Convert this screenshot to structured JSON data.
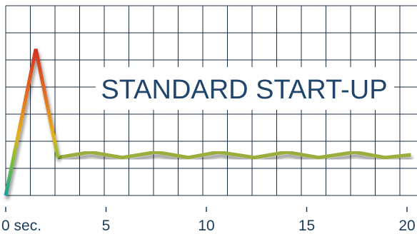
{
  "chart_data": {
    "type": "line",
    "title": "STANDARD START-UP",
    "xlabel": "",
    "ylabel": "",
    "x_ticks": [
      {
        "value": 0,
        "label": "0 sec."
      },
      {
        "value": 5,
        "label": "5"
      },
      {
        "value": 10,
        "label": "10"
      },
      {
        "value": 15,
        "label": "15"
      },
      {
        "value": 20,
        "label": "20"
      }
    ],
    "xlim": [
      0,
      20.2
    ],
    "ylim": [
      0,
      7
    ],
    "grid": true,
    "series": [
      {
        "x": [
          0,
          1.5,
          2.6,
          4.2,
          5.8,
          7.5,
          9.1,
          10.6,
          12.4,
          14.0,
          15.6,
          17.4,
          18.9,
          20.2
        ],
        "y": [
          0,
          5.4,
          1.4,
          1.6,
          1.4,
          1.6,
          1.4,
          1.6,
          1.4,
          1.6,
          1.4,
          1.6,
          1.4,
          1.5
        ]
      }
    ],
    "colors": {
      "grid": "#1a2f44",
      "title": "#1f456b",
      "tick_labels": "#1a3c5c",
      "spike_gradient": [
        "#1aa09a",
        "#7bbf3a",
        "#e6b11e",
        "#e27a22",
        "#d42a22"
      ],
      "steady_line": "#9aae3c"
    }
  }
}
